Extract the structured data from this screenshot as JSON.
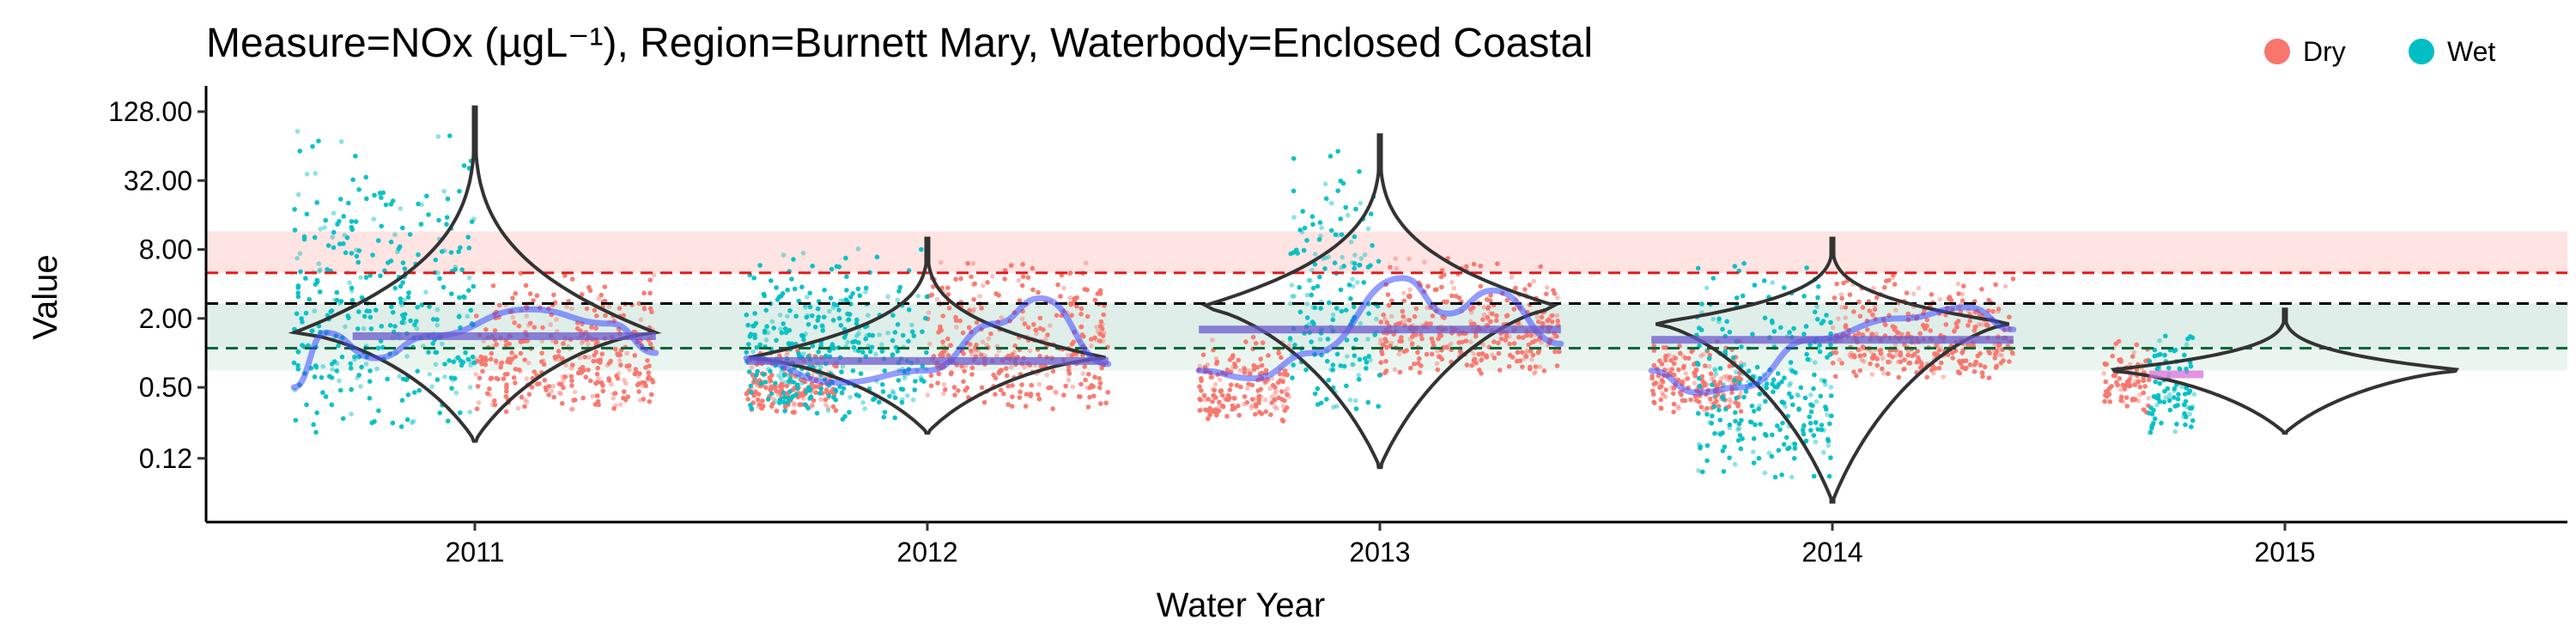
{
  "chart_data": {
    "type": "violin",
    "title": "Measure=NOx (µgL⁻¹), Region=Burnett Mary, Waterbody=Enclosed Coastal",
    "xlabel": "Water Year",
    "ylabel": "Value",
    "y_scale": "log2",
    "ylim": [
      0.07,
      400
    ],
    "y_ticks": [
      0.12,
      0.5,
      2.0,
      8.0,
      32.0,
      128.0
    ],
    "y_tick_labels": [
      "0.12",
      "0.50",
      "2.00",
      "8.00",
      "32.00",
      "128.00"
    ],
    "categories": [
      "2011",
      "2012",
      "2013",
      "2014",
      "2015"
    ],
    "legend": {
      "position": "top-right",
      "entries": [
        {
          "label": "Dry",
          "color": "#F8766D"
        },
        {
          "label": "Wet",
          "color": "#00BFC4"
        }
      ]
    },
    "guideline_bands": [
      {
        "name": "upper-red-band",
        "low": 5.0,
        "high": 11.5,
        "color": "#F8766D"
      },
      {
        "name": "middle-green-band",
        "low": 1.1,
        "high": 2.7,
        "color": "#5FA98A"
      },
      {
        "name": "lower-green-band",
        "low": 0.7,
        "high": 1.1,
        "color": "#9ACBB3"
      }
    ],
    "reference_lines": [
      {
        "name": "red-threshold",
        "value": 5.0,
        "color": "#E41A1C"
      },
      {
        "name": "black-threshold",
        "value": 2.7,
        "color": "#000000"
      },
      {
        "name": "green-threshold",
        "value": 1.1,
        "color": "#006837"
      }
    ],
    "violins": [
      {
        "year": "2011",
        "min": 0.17,
        "max": 140,
        "center": 1.5,
        "half_width": 0.4
      },
      {
        "year": "2012",
        "min": 0.2,
        "max": 10,
        "center": 0.9,
        "half_width": 0.4
      },
      {
        "year": "2013",
        "min": 0.1,
        "max": 80,
        "center": 2.5,
        "half_width": 0.4
      },
      {
        "year": "2014",
        "min": 0.05,
        "max": 10,
        "center": 1.8,
        "half_width": 0.4
      },
      {
        "year": "2015",
        "min": 0.2,
        "max": 2.4,
        "center": 0.7,
        "half_width": 0.4
      }
    ],
    "series": [
      {
        "name": "Dry",
        "color": "#F8766D",
        "ranges": [
          {
            "year": "2011",
            "x_from": 0.0,
            "x_to": 0.4,
            "low": 0.3,
            "high": 6.0
          },
          {
            "year": "2012",
            "x_from": -0.4,
            "x_to": -0.2,
            "low": 0.3,
            "high": 1.2
          },
          {
            "year": "2012",
            "x_from": 0.0,
            "x_to": 0.4,
            "low": 0.3,
            "high": 8.0
          },
          {
            "year": "2013",
            "x_from": -0.4,
            "x_to": -0.2,
            "low": 0.25,
            "high": 1.6
          },
          {
            "year": "2013",
            "x_from": 0.0,
            "x_to": 0.4,
            "low": 0.6,
            "high": 8.0
          },
          {
            "year": "2014",
            "x_from": -0.4,
            "x_to": -0.2,
            "low": 0.3,
            "high": 1.4
          },
          {
            "year": "2014",
            "x_from": 0.0,
            "x_to": 0.4,
            "low": 0.6,
            "high": 5.0
          },
          {
            "year": "2015",
            "x_from": -0.4,
            "x_to": -0.3,
            "low": 0.3,
            "high": 1.5
          }
        ]
      },
      {
        "name": "Wet",
        "color": "#00BFC4",
        "ranges": [
          {
            "year": "2011",
            "x_from": -0.4,
            "x_to": 0.0,
            "low": 0.2,
            "high": 140
          },
          {
            "year": "2012",
            "x_from": -0.4,
            "x_to": 0.0,
            "low": 0.25,
            "high": 10
          },
          {
            "year": "2013",
            "x_from": -0.2,
            "x_to": 0.0,
            "low": 0.3,
            "high": 90
          },
          {
            "year": "2014",
            "x_from": -0.3,
            "x_to": 0.0,
            "low": 0.08,
            "high": 10
          },
          {
            "year": "2015",
            "x_from": -0.3,
            "x_to": -0.2,
            "low": 0.2,
            "high": 1.8
          }
        ]
      }
    ],
    "trend_segments": [
      {
        "year": "2011",
        "x_from": -0.27,
        "x_to": 0.4,
        "value": 1.4,
        "color": "#6A5ACD"
      },
      {
        "year": "2012",
        "x_from": -0.4,
        "x_to": 0.4,
        "value": 0.85,
        "color": "#6A5ACD"
      },
      {
        "year": "2013",
        "x_from": -0.4,
        "x_to": 0.4,
        "value": 1.6,
        "color": "#6A5ACD"
      },
      {
        "year": "2014",
        "x_from": -0.4,
        "x_to": 0.4,
        "value": 1.3,
        "color": "#6A5ACD"
      },
      {
        "year": "2015",
        "x_from": -0.3,
        "x_to": -0.18,
        "value": 0.65,
        "color": "#DA70D6"
      }
    ],
    "smooth_curves": [
      {
        "year": "2011",
        "color": "#3D4BFF",
        "points": [
          [
            -0.4,
            0.5
          ],
          [
            -0.33,
            1.5
          ],
          [
            -0.22,
            0.9
          ],
          [
            -0.1,
            1.4
          ],
          [
            0.12,
            2.4
          ],
          [
            0.3,
            1.8
          ],
          [
            0.4,
            1.0
          ]
        ]
      },
      {
        "year": "2012",
        "color": "#3D4BFF",
        "points": [
          [
            -0.4,
            0.9
          ],
          [
            -0.2,
            0.55
          ],
          [
            0.0,
            0.7
          ],
          [
            0.15,
            1.8
          ],
          [
            0.25,
            3.0
          ],
          [
            0.4,
            0.8
          ]
        ]
      },
      {
        "year": "2013",
        "color": "#3D4BFF",
        "points": [
          [
            -0.4,
            0.7
          ],
          [
            -0.28,
            0.6
          ],
          [
            -0.15,
            1.0
          ],
          [
            0.05,
            4.5
          ],
          [
            0.15,
            2.2
          ],
          [
            0.25,
            3.5
          ],
          [
            0.4,
            1.2
          ]
        ]
      },
      {
        "year": "2014",
        "color": "#3D4BFF",
        "points": [
          [
            -0.4,
            0.7
          ],
          [
            -0.3,
            0.45
          ],
          [
            -0.2,
            0.5
          ],
          [
            -0.05,
            1.3
          ],
          [
            0.15,
            2.0
          ],
          [
            0.3,
            2.5
          ],
          [
            0.4,
            1.6
          ]
        ]
      }
    ]
  }
}
